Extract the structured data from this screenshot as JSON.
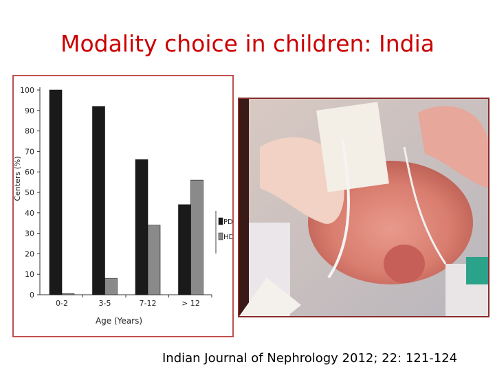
{
  "slide": {
    "title": "Modality choice in children: India",
    "citation": "Indian Journal of Nephrology 2012; 22: 121-124"
  },
  "photo": {
    "description_icon": "infant-peritoneal-dialysis-photo"
  },
  "chart_data": {
    "type": "bar",
    "title": "",
    "xlabel": "Age (Years)",
    "ylabel": "Centers (%)",
    "ylim": [
      0,
      100
    ],
    "yticks": [
      0,
      10,
      20,
      30,
      40,
      50,
      60,
      70,
      80,
      90,
      100
    ],
    "categories": [
      "0-2",
      "3-5",
      "7-12",
      "> 12"
    ],
    "series": [
      {
        "name": "PD",
        "color": "#1a1a1a",
        "values": [
          100,
          92,
          66,
          44
        ]
      },
      {
        "name": "HD",
        "color": "#8a8a8a",
        "values": [
          0.5,
          8,
          34,
          56
        ]
      }
    ],
    "grid": false,
    "legend": "right"
  }
}
